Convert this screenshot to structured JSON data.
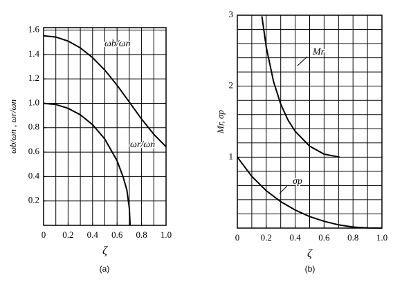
{
  "chart_data": [
    {
      "type": "line",
      "caption": "(a)",
      "x_label": "ζ",
      "y_label": "ωb/ωn , ωr/ωn",
      "xlim": [
        0,
        1
      ],
      "ylim": [
        0,
        1.62
      ],
      "xticks": [
        0,
        0.2,
        0.4,
        0.6,
        0.8,
        {
          "value": 1,
          "label": "1.0"
        }
      ],
      "yticks": [
        0.2,
        0.4,
        0.6,
        0.8,
        {
          "value": 1,
          "label": "1.0"
        },
        1.2,
        1.4,
        1.6
      ],
      "xgrid": [
        0.1,
        0.2,
        0.3,
        0.4,
        0.5,
        0.6,
        0.7,
        0.8,
        0.9
      ],
      "ygrid": [
        0.2,
        0.4,
        0.6,
        0.8,
        1,
        1.2,
        1.4,
        1.6
      ],
      "series": [
        {
          "name": "ωb/ωn",
          "color": "#000000",
          "x": [
            0,
            0.1,
            0.2,
            0.3,
            0.4,
            0.5,
            0.6,
            0.7,
            0.8,
            0.9,
            1
          ],
          "values": [
            1.554,
            1.543,
            1.51,
            1.454,
            1.374,
            1.272,
            1.148,
            1.01,
            0.871,
            0.746,
            0.644
          ]
        },
        {
          "name": "ωr/ωn",
          "color": "#000000",
          "x": [
            0,
            0.1,
            0.2,
            0.3,
            0.4,
            0.5,
            0.6,
            0.65,
            0.68,
            0.7,
            0.707
          ],
          "values": [
            1,
            0.99,
            0.959,
            0.906,
            0.825,
            0.707,
            0.529,
            0.394,
            0.288,
            0.141,
            0
          ]
        }
      ]
    },
    {
      "type": "line",
      "caption": "(b)",
      "x_label": "ζ",
      "y_label": "Mr, σp",
      "xlim": [
        0,
        1
      ],
      "ylim": [
        0,
        3
      ],
      "xticks": [
        0,
        0.2,
        0.4,
        0.6,
        0.8,
        {
          "value": 1,
          "label": "1.0"
        }
      ],
      "yticks": [
        1,
        2,
        3
      ],
      "xgrid": [
        0.1,
        0.2,
        0.3,
        0.4,
        0.5,
        0.6,
        0.7,
        0.8,
        0.9
      ],
      "ygrid": [
        0.2,
        0.4,
        0.6,
        0.8,
        1,
        1.2,
        1.4,
        1.6,
        1.8,
        2,
        2.2,
        2.4,
        2.6,
        2.8
      ],
      "series": [
        {
          "name": "Mr",
          "color": "#000000",
          "x": [
            0.17,
            0.2,
            0.25,
            0.3,
            0.35,
            0.4,
            0.5,
            0.6,
            0.707
          ],
          "values": [
            2.985,
            2.551,
            2.066,
            1.747,
            1.525,
            1.364,
            1.155,
            1.042,
            1
          ]
        },
        {
          "name": "σp",
          "color": "#000000",
          "x": [
            0,
            0.1,
            0.2,
            0.3,
            0.4,
            0.5,
            0.6,
            0.7,
            0.8,
            0.9,
            1
          ],
          "values": [
            1,
            0.729,
            0.527,
            0.372,
            0.254,
            0.163,
            0.095,
            0.046,
            0.015,
            0.002,
            0
          ]
        }
      ]
    }
  ]
}
